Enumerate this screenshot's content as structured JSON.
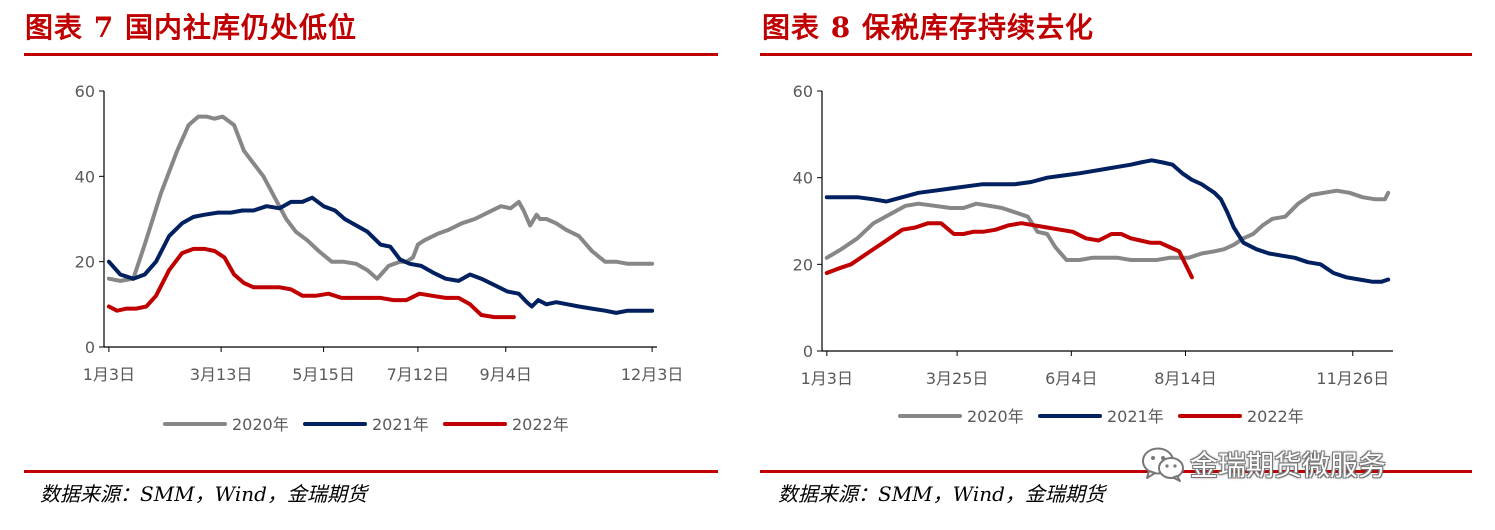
{
  "watermark": {
    "text": "金瑞期货微服务",
    "icon": "wechat-icon"
  },
  "charts": [
    {
      "title": "图表 7  国内社库仍处低位",
      "source": "数据来源：SMM，Wind，金瑞期货",
      "chart_data": {
        "type": "line",
        "x_unit": "date (month/day of year)",
        "x_ticks": [
          "1月3日",
          "3月13日",
          "5月15日",
          "7月12日",
          "9月4日",
          "12月3日"
        ],
        "x_tick_days": [
          3,
          72,
          135,
          193,
          247,
          337
        ],
        "xlim_days": [
          0,
          340
        ],
        "ylim": [
          0,
          60
        ],
        "y_ticks": [
          0,
          20,
          40,
          60
        ],
        "grid": false,
        "legend": "bottom",
        "series": [
          {
            "name": "2020年",
            "color": "#878787",
            "x": [
              3,
              10,
              18,
              25,
              35,
              45,
              52,
              58,
              63,
              68,
              73,
              80,
              86,
              92,
              98,
              105,
              112,
              118,
              125,
              132,
              140,
              147,
              155,
              162,
              168,
              175,
              182,
              186,
              190,
              193,
              197,
              205,
              212,
              220,
              228,
              236,
              244,
              250,
              255,
              258,
              262,
              266,
              268,
              272,
              278,
              284,
              292,
              300,
              308,
              315,
              322,
              330,
              337
            ],
            "y": [
              16,
              15.5,
              16,
              24,
              36,
              46,
              52,
              54,
              54,
              53.5,
              54,
              52,
              46,
              43,
              40,
              35,
              30,
              27,
              25,
              22.5,
              20,
              20,
              19.5,
              18,
              16,
              19,
              20,
              20,
              21,
              24,
              25,
              26.5,
              27.5,
              29,
              30,
              31.5,
              33,
              32.5,
              34,
              32,
              28.5,
              31,
              30,
              30,
              29,
              27.5,
              26,
              22.5,
              20,
              20,
              19.5,
              19.5,
              19.5
            ]
          },
          {
            "name": "2021年",
            "color": "#002060",
            "x": [
              3,
              10,
              18,
              25,
              32,
              40,
              48,
              55,
              62,
              70,
              78,
              85,
              92,
              100,
              108,
              115,
              122,
              128,
              135,
              142,
              148,
              155,
              162,
              170,
              176,
              182,
              188,
              195,
              202,
              210,
              218,
              225,
              232,
              240,
              248,
              255,
              260,
              263,
              267,
              272,
              278,
              285,
              292,
              300,
              308,
              315,
              322,
              330,
              337
            ],
            "y": [
              20,
              17,
              16,
              17,
              20,
              26,
              29,
              30.5,
              31,
              31.5,
              31.5,
              32,
              32,
              33,
              32.5,
              34,
              34,
              35,
              33,
              32,
              30,
              28.5,
              27,
              24,
              23.5,
              20.5,
              19.5,
              19,
              17.5,
              16,
              15.5,
              17,
              16,
              14.5,
              13,
              12.5,
              10.5,
              9.5,
              11,
              10,
              10.5,
              10,
              9.5,
              9,
              8.5,
              8,
              8.5,
              8.5,
              8.5
            ]
          },
          {
            "name": "2022年",
            "color": "#c00000",
            "x": [
              3,
              8,
              14,
              20,
              26,
              32,
              40,
              48,
              55,
              62,
              68,
              74,
              80,
              86,
              92,
              100,
              108,
              115,
              122,
              130,
              138,
              146,
              154,
              162,
              170,
              178,
              186,
              194,
              202,
              210,
              218,
              225,
              232,
              240,
              248,
              252
            ],
            "y": [
              9.5,
              8.5,
              9,
              9,
              9.5,
              12,
              18,
              22,
              23,
              23,
              22.5,
              21,
              17,
              15,
              14,
              14,
              14,
              13.5,
              12,
              12,
              12.5,
              11.5,
              11.5,
              11.5,
              11.5,
              11,
              11,
              12.5,
              12,
              11.5,
              11.5,
              10,
              7.5,
              7,
              7,
              7
            ]
          }
        ]
      }
    },
    {
      "title": "图表 8  保税库存持续去化",
      "source": "数据来源：SMM，Wind，金瑞期货",
      "chart_data": {
        "type": "line",
        "x_unit": "date (month/day of year)",
        "x_ticks": [
          "1月3日",
          "3月25日",
          "6月4日",
          "8月14日",
          "11月26日"
        ],
        "x_tick_days": [
          3,
          84,
          155,
          226,
          330
        ],
        "xlim_days": [
          0,
          355
        ],
        "ylim": [
          0,
          60
        ],
        "y_ticks": [
          0,
          20,
          40,
          60
        ],
        "grid": false,
        "legend": "bottom",
        "series": [
          {
            "name": "2020年",
            "color": "#878787",
            "x": [
              3,
              12,
              22,
              32,
              42,
              52,
              60,
              70,
              80,
              88,
              96,
              104,
              112,
              120,
              128,
              134,
              140,
              145,
              152,
              160,
              168,
              176,
              184,
              192,
              200,
              208,
              216,
              222,
              228,
              236,
              244,
              250,
              256,
              262,
              268,
              274,
              280,
              288,
              296,
              304,
              312,
              320,
              328,
              336,
              344,
              350,
              352
            ],
            "y": [
              21.5,
              23.5,
              26,
              29.5,
              31.5,
              33.5,
              34,
              33.5,
              33,
              33,
              34,
              33.5,
              33,
              32,
              31,
              27.5,
              27,
              24,
              21,
              21,
              21.5,
              21.5,
              21.5,
              21,
              21,
              21,
              21.5,
              21.5,
              21.5,
              22.5,
              23,
              23.5,
              24.5,
              26,
              27,
              29,
              30.5,
              31,
              34,
              36,
              36.5,
              37,
              36.5,
              35.5,
              35,
              35,
              36.5
            ]
          },
          {
            "name": "2021年",
            "color": "#002060",
            "x": [
              3,
              12,
              22,
              32,
              40,
              50,
              60,
              70,
              80,
              90,
              100,
              110,
              120,
              130,
              140,
              150,
              160,
              168,
              176,
              184,
              192,
              198,
              205,
              212,
              218,
              224,
              230,
              236,
              240,
              244,
              248,
              252,
              256,
              262,
              270,
              278,
              286,
              294,
              302,
              310,
              318,
              326,
              334,
              342,
              348,
              352
            ],
            "y": [
              35.5,
              35.5,
              35.5,
              35,
              34.5,
              35.5,
              36.5,
              37,
              37.5,
              38,
              38.5,
              38.5,
              38.5,
              39,
              40,
              40.5,
              41,
              41.5,
              42,
              42.5,
              43,
              43.5,
              44,
              43.5,
              43,
              41,
              39.5,
              38.5,
              37.5,
              36.5,
              35,
              32,
              28.5,
              25,
              23.5,
              22.5,
              22,
              21.5,
              20.5,
              20,
              18,
              17,
              16.5,
              16,
              16,
              16.5
            ]
          },
          {
            "name": "2022年",
            "color": "#c00000",
            "x": [
              3,
              10,
              18,
              26,
              34,
              42,
              50,
              58,
              66,
              74,
              82,
              88,
              94,
              100,
              108,
              116,
              124,
              132,
              140,
              148,
              156,
              164,
              172,
              180,
              186,
              192,
              198,
              204,
              210,
              216,
              222,
              226,
              230
            ],
            "y": [
              18,
              19,
              20,
              22,
              24,
              26,
              28,
              28.5,
              29.5,
              29.5,
              27,
              27,
              27.5,
              27.5,
              28,
              29,
              29.5,
              29,
              28.5,
              28,
              27.5,
              26,
              25.5,
              27,
              27,
              26,
              25.5,
              25,
              25,
              24,
              23,
              20,
              17
            ]
          }
        ]
      }
    }
  ]
}
